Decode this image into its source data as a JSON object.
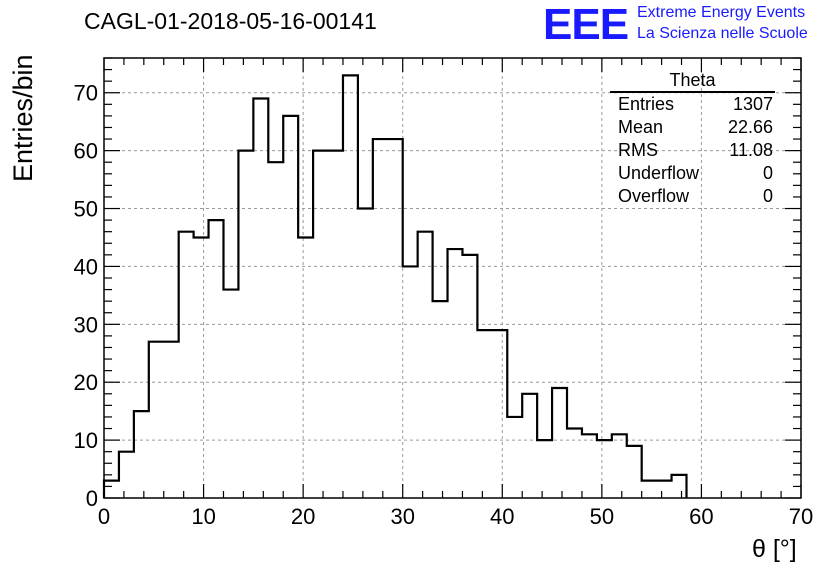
{
  "title": "CAGL-01-2018-05-16-00141",
  "logo": {
    "mark": "EEE",
    "line1": "Extreme Energy Events",
    "line2": "La Scienza nelle Scuole"
  },
  "colors": {
    "logo": "#1a1aff",
    "histogram": "#000000",
    "grid": "#9a9a9a"
  },
  "stats": {
    "name": "Theta",
    "rows": [
      {
        "label": "Entries",
        "value": "1307"
      },
      {
        "label": "Mean",
        "value": "22.66"
      },
      {
        "label": "RMS",
        "value": "11.08"
      },
      {
        "label": "Underflow",
        "value": "0"
      },
      {
        "label": "Overflow",
        "value": "0"
      }
    ]
  },
  "chart_data": {
    "type": "bar",
    "style": "step-histogram",
    "xlabel": "θ [°]",
    "ylabel": "Entries/bin",
    "xlim": [
      0,
      70
    ],
    "ylim": [
      0,
      76
    ],
    "grid": true,
    "xticks": [
      0,
      10,
      20,
      30,
      40,
      50,
      60,
      70
    ],
    "yticks": [
      0,
      10,
      20,
      30,
      40,
      50,
      60,
      70
    ],
    "bin_width": 1.5,
    "bin_edges_start": 0,
    "values": [
      3,
      8,
      15,
      27,
      27,
      46,
      45,
      48,
      36,
      60,
      69,
      58,
      66,
      45,
      60,
      60,
      73,
      50,
      62,
      62,
      40,
      46,
      34,
      43,
      42,
      29,
      29,
      14,
      18,
      10,
      19,
      12,
      11,
      10,
      11,
      9,
      3,
      3,
      4,
      0,
      0,
      0,
      0,
      0,
      0,
      0,
      0
    ]
  }
}
